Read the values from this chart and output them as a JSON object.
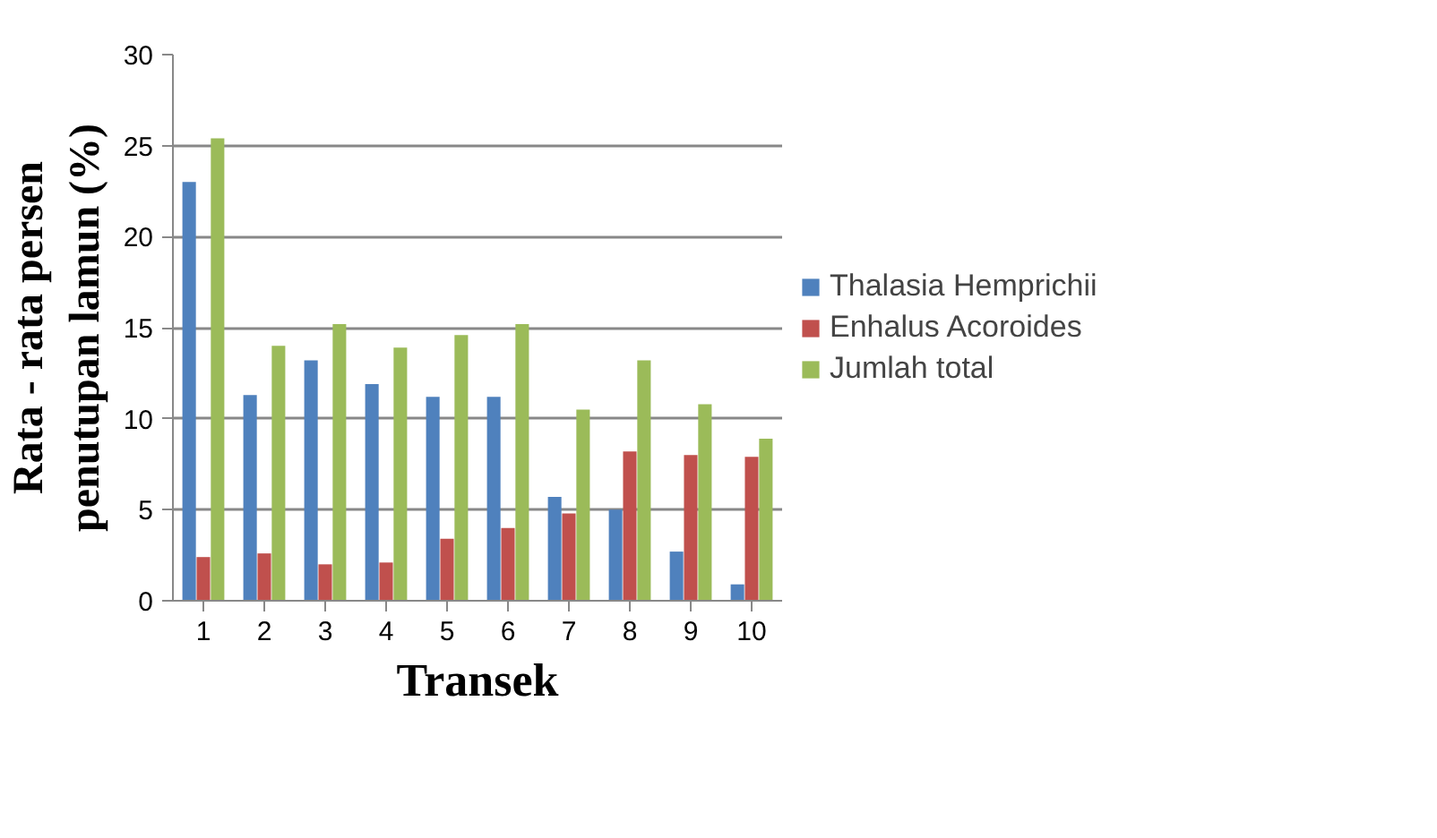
{
  "chart_data": {
    "type": "bar",
    "xlabel": "Transek",
    "ylabel": "Rata - rata persen penutupan lamun (%)",
    "categories": [
      "1",
      "2",
      "3",
      "4",
      "5",
      "6",
      "7",
      "8",
      "9",
      "10"
    ],
    "series": [
      {
        "name": "Thalasia Hemprichii",
        "color": "#4f81bd",
        "values": [
          23.0,
          11.3,
          13.2,
          11.9,
          11.2,
          11.2,
          5.7,
          5.0,
          2.7,
          0.9
        ]
      },
      {
        "name": "Enhalus Acoroides",
        "color": "#c0504d",
        "values": [
          2.4,
          2.6,
          2.0,
          2.1,
          3.4,
          4.0,
          4.8,
          8.2,
          8.0,
          7.9
        ]
      },
      {
        "name": "Jumlah total",
        "color": "#9bbb59",
        "values": [
          25.4,
          14.0,
          15.2,
          13.9,
          14.6,
          15.2,
          10.5,
          13.2,
          10.8,
          8.9
        ]
      }
    ],
    "ylim": [
      0,
      30
    ],
    "yticks": [
      0,
      5,
      10,
      15,
      20,
      25,
      30
    ],
    "grid": "y",
    "legend": "right"
  }
}
